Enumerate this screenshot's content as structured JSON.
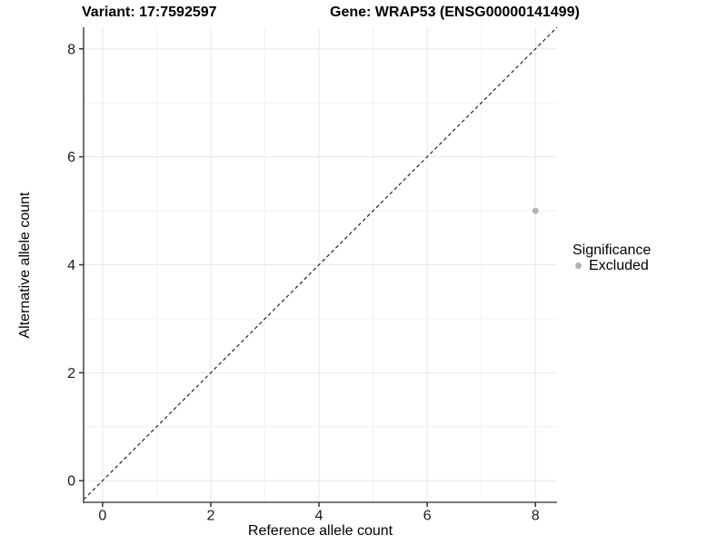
{
  "titles": {
    "variant": "Variant: 17:7592597",
    "gene": "Gene: WRAP53 (ENSG00000141499)"
  },
  "chart_data": {
    "type": "scatter",
    "title_left": "Variant: 17:7592597",
    "title_right": "Gene: WRAP53 (ENSG00000141499)",
    "xlabel": "Reference allele count",
    "ylabel": "Alternative allele count",
    "xlim": [
      -0.35,
      8.4
    ],
    "ylim": [
      -0.4,
      8.4
    ],
    "x_ticks": [
      0,
      2,
      4,
      6,
      8
    ],
    "y_ticks": [
      0,
      2,
      4,
      6,
      8
    ],
    "major_gridlines_x": [
      0,
      2,
      4,
      6,
      8
    ],
    "major_gridlines_y": [
      0,
      2,
      4,
      6,
      8
    ],
    "minor_gridlines_x": [
      1,
      3,
      5,
      7
    ],
    "minor_gridlines_y": [
      1,
      3,
      5,
      7
    ],
    "grid": true,
    "identity_line": {
      "style": "dashed",
      "slope": 1,
      "intercept": 0
    },
    "legend": {
      "title": "Significance",
      "position": "right",
      "entries": [
        {
          "label": "Excluded",
          "color": "#b3b3b3"
        }
      ]
    },
    "series": [
      {
        "name": "Excluded",
        "color": "#b3b3b3",
        "points": [
          {
            "x": 8,
            "y": 5
          }
        ]
      }
    ]
  },
  "colors": {
    "background": "#ffffff",
    "grid_major": "#e7e7e7",
    "grid_minor": "#f1f1f1",
    "axis_line": "#4d4d4d",
    "tick_mark": "#333333",
    "tick_text": "#1a1a1a",
    "identity_line": "#000000",
    "point": "#b3b3b3"
  }
}
